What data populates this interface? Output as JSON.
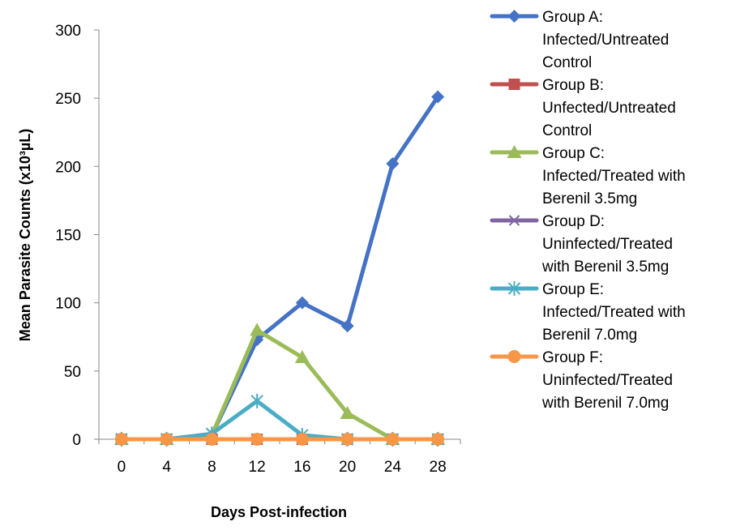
{
  "chart_data": {
    "type": "line",
    "title": "",
    "xlabel": "Days Post-infection",
    "ylabel": "Mean Parasite Counts (x10³µL)",
    "categories": [
      "0",
      "4",
      "8",
      "12",
      "16",
      "20",
      "24",
      "28"
    ],
    "ylim": [
      0,
      300
    ],
    "yticks": [
      "0",
      "50",
      "100",
      "150",
      "200",
      "250",
      "300"
    ],
    "grid": false,
    "legend_position": "right",
    "series": [
      {
        "name": "Group A: Infected/Untreated Control",
        "legend_lines": [
          "Group A:",
          "Infected/Untreated",
          "Control"
        ],
        "color": "#4472C4",
        "marker": "diamond",
        "values": [
          0,
          0,
          3,
          73,
          100,
          83,
          202,
          251
        ]
      },
      {
        "name": "Group B: Unfected/Untreated Control",
        "legend_lines": [
          "Group B:",
          "Unfected/Untreated",
          "Control"
        ],
        "color": "#C0504D",
        "marker": "square",
        "values": [
          0,
          0,
          0,
          0,
          0,
          0,
          0,
          0
        ]
      },
      {
        "name": "Group C: Infected/Treated with Berenil 3.5mg",
        "legend_lines": [
          "Group C:",
          "Infected/Treated with",
          "Berenil 3.5mg"
        ],
        "color": "#9BBB59",
        "marker": "triangle",
        "values": [
          0,
          0,
          3,
          80,
          60,
          19,
          0,
          0
        ]
      },
      {
        "name": "Group D: Uninfected/Treated with Berenil 3.5mg",
        "legend_lines": [
          "Group D:",
          "Uninfected/Treated",
          "with Berenil 3.5mg"
        ],
        "color": "#8064A2",
        "marker": "x",
        "values": [
          0,
          0,
          0,
          0,
          0,
          0,
          0,
          0
        ]
      },
      {
        "name": "Group E: Infected/Treated with Berenil 7.0mg",
        "legend_lines": [
          "Group E:",
          "Infected/Treated with",
          "Berenil 7.0mg"
        ],
        "color": "#4BACC6",
        "marker": "star",
        "values": [
          0,
          0,
          4,
          28,
          3,
          0,
          0,
          0
        ]
      },
      {
        "name": "Group F: Uninfected/Treated with Berenil 7.0mg",
        "legend_lines": [
          "Group F:",
          "Uninfected/Treated",
          "with Berenil 7.0mg"
        ],
        "color": "#F79646",
        "marker": "circle",
        "values": [
          0,
          0,
          0,
          0,
          0,
          0,
          0,
          0
        ]
      }
    ]
  }
}
